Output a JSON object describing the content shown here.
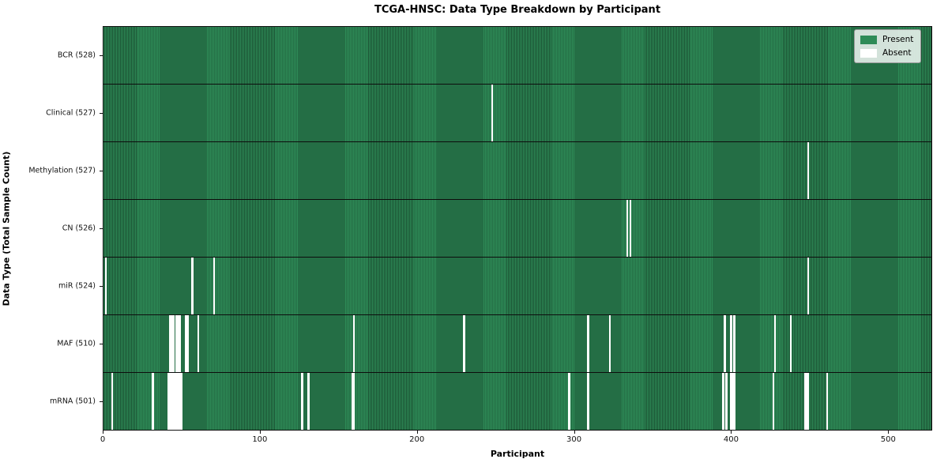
{
  "chart_data": {
    "type": "heatmap",
    "title": "TCGA-HNSC: Data Type Breakdown by Participant",
    "xlabel": "Participant",
    "ylabel": "Data Type (Total Sample Count)",
    "n_participants": 528,
    "x_ticks": [
      0,
      100,
      200,
      300,
      400,
      500
    ],
    "legend": [
      {
        "label": "Present",
        "color": "#2e8b57"
      },
      {
        "label": "Absent",
        "color": "#ffffff"
      }
    ],
    "colors": {
      "present": "#2e8b57",
      "present_edge": "#1b5233",
      "absent": "#ffffff",
      "row_divider": "#0d0d0d"
    },
    "rows": [
      {
        "label": "BCR (528)",
        "name": "BCR",
        "total": 528,
        "absent_participants": []
      },
      {
        "label": "Clinical (527)",
        "name": "Clinical",
        "total": 527,
        "absent_participants": [
          247
        ]
      },
      {
        "label": "Methylation (527)",
        "name": "Methylation",
        "total": 527,
        "absent_participants": [
          448
        ]
      },
      {
        "label": "CN (526)",
        "name": "CN",
        "total": 526,
        "absent_participants": [
          333,
          335
        ]
      },
      {
        "label": "miR (524)",
        "name": "miR",
        "total": 524,
        "absent_participants": [
          1,
          56,
          70,
          448
        ]
      },
      {
        "label": "MAF (510)",
        "name": "MAF",
        "total": 510,
        "absent_participants": [
          42,
          43,
          44,
          46,
          47,
          48,
          52,
          53,
          60,
          159,
          229,
          308,
          322,
          395,
          399,
          401,
          427,
          437
        ]
      },
      {
        "label": "mRNA (501)",
        "name": "mRNA",
        "total": 501,
        "absent_participants": [
          5,
          31,
          41,
          42,
          43,
          44,
          45,
          46,
          47,
          48,
          49,
          126,
          130,
          158,
          159,
          296,
          308,
          394,
          396,
          399,
          400,
          401,
          426,
          446,
          447,
          448,
          460
        ]
      }
    ]
  }
}
